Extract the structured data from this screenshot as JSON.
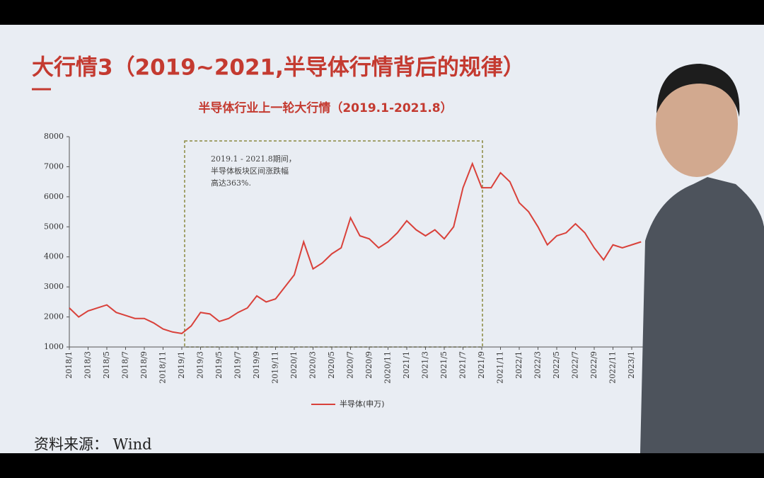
{
  "slide_title": "大行情3（2019~2021,半导体行情背后的规律）",
  "source": "资料来源：  Wind",
  "chart_data": {
    "type": "line",
    "title": "半导体行业上一轮大行情（2019.1-2021.8）",
    "annotation": [
      "2019.1 - 2021.8期间，",
      "半导体板块区间涨跌幅",
      "高达363%."
    ],
    "categories": [
      "2018/1",
      null,
      "2018/3",
      null,
      "2018/5",
      null,
      "2018/7",
      null,
      "2018/9",
      null,
      "2018/11",
      null,
      "2019/1",
      null,
      "2019/3",
      null,
      "2019/5",
      null,
      "2019/7",
      null,
      "2019/9",
      null,
      "2019/11",
      null,
      "2020/1",
      null,
      "2020/3",
      null,
      "2020/5",
      null,
      "2020/7",
      null,
      "2020/9",
      null,
      "2020/11",
      null,
      "2021/1",
      null,
      "2021/3",
      null,
      "2021/5",
      null,
      "2021/7",
      null,
      "2021/9",
      null,
      "2021/11",
      null,
      "2022/1",
      null,
      "2022/3",
      null,
      "2022/5",
      null,
      "2022/7",
      null,
      "2022/9",
      null,
      "2022/11",
      null,
      "2023/1",
      null
    ],
    "series": [
      {
        "name": "半导体(申万)",
        "color": "#d9413a",
        "values": [
          2300,
          2000,
          2200,
          2300,
          2400,
          2150,
          2050,
          1950,
          1950,
          1800,
          1600,
          1500,
          1450,
          1700,
          2150,
          2100,
          1850,
          1950,
          2150,
          2300,
          2700,
          2500,
          2600,
          3000,
          3400,
          4500,
          3600,
          3800,
          4100,
          4300,
          5300,
          4700,
          4600,
          4300,
          4500,
          4800,
          5200,
          4900,
          4700,
          4900,
          4600,
          5000,
          6300,
          7100,
          6300,
          6300,
          6800,
          6500,
          5800,
          5500,
          5000,
          4400,
          4700,
          4800,
          5100,
          4800,
          4300,
          3900,
          4400,
          4300,
          4400,
          4500
        ]
      }
    ],
    "ylim": [
      1000,
      8000
    ],
    "yticks": [
      1000,
      2000,
      3000,
      4000,
      5000,
      6000,
      7000,
      8000
    ],
    "legend": "bottom"
  }
}
